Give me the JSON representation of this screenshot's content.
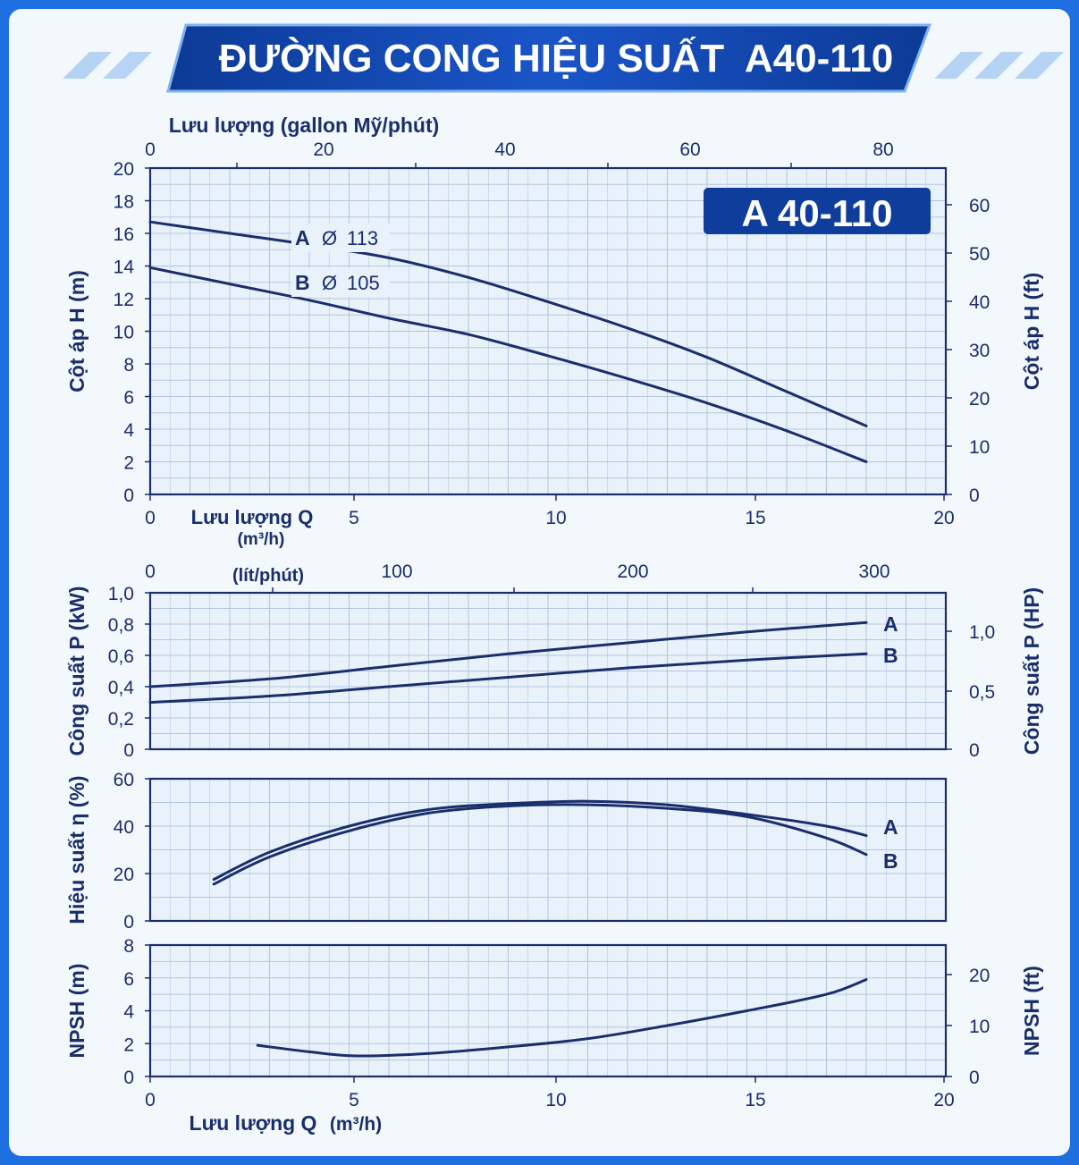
{
  "page_title": "ĐƯỜNG CONG HIỆU SUẤT  A40-110",
  "model_badge": "A 40-110",
  "colors": {
    "frame": "#1f6fe0",
    "panel": "#f3f8fd",
    "plot_bg": "#e9f2fb",
    "grid": "#b4c6dc",
    "curve": "#1a2e6c",
    "text": "#1a2e6c",
    "banner": "#0f3d9c"
  },
  "chart_data": [
    {
      "id": "head",
      "type": "line",
      "ylabel_left": "Cột áp H (m)",
      "ylabel_right": "Cột áp H (ft)",
      "top_axis_label": "Lưu lượng (gallon Mỹ/phút)",
      "top_ticks": [
        "0",
        "20",
        "40",
        "60",
        "80"
      ],
      "xlim": [
        0,
        20
      ],
      "ylim": [
        0,
        20
      ],
      "x_ticks": [
        "0",
        "5",
        "10",
        "15",
        "20"
      ],
      "x_axis_label": "Lưu lượng Q",
      "x_axis_unit": "(m³/h)",
      "y_ticks": [
        "0",
        "2",
        "4",
        "6",
        "8",
        "10",
        "12",
        "14",
        "16",
        "18",
        "20"
      ],
      "y_right_ticks": [
        "0",
        "10",
        "20",
        "30",
        "40",
        "50",
        "60"
      ],
      "series": [
        {
          "name": "A",
          "label_symbol": "Ø",
          "label_value": "113",
          "x": [
            0,
            2,
            4,
            6,
            8,
            10,
            12,
            14,
            16,
            18
          ],
          "y": [
            16.7,
            16.0,
            15.3,
            14.5,
            13.3,
            11.8,
            10.2,
            8.4,
            6.3,
            4.2
          ]
        },
        {
          "name": "B",
          "label_symbol": "Ø",
          "label_value": "105",
          "x": [
            0,
            2,
            4,
            6,
            8,
            10,
            12,
            14,
            16,
            18
          ],
          "y": [
            13.9,
            12.9,
            11.9,
            10.8,
            9.8,
            8.5,
            7.1,
            5.6,
            3.9,
            2.0
          ]
        }
      ]
    },
    {
      "id": "power",
      "type": "line",
      "ylabel_left": "Công suất P (kW)",
      "ylabel_right": "Công suất P (HP)",
      "top_axis_label": "(lít/phút)",
      "top_ticks": [
        "0",
        "100",
        "200",
        "300"
      ],
      "xlim": [
        0,
        20
      ],
      "ylim": [
        0,
        1.0
      ],
      "y_ticks": [
        "0",
        "0,2",
        "0,4",
        "0,6",
        "0,8",
        "1,0"
      ],
      "y_right_ticks": [
        "0",
        "0,5",
        "1,0"
      ],
      "series": [
        {
          "name": "A",
          "x": [
            0,
            3,
            6,
            9,
            12,
            15,
            18
          ],
          "y": [
            0.4,
            0.45,
            0.53,
            0.61,
            0.68,
            0.75,
            0.81
          ]
        },
        {
          "name": "B",
          "x": [
            0,
            3,
            6,
            9,
            12,
            15,
            18
          ],
          "y": [
            0.3,
            0.34,
            0.4,
            0.46,
            0.52,
            0.57,
            0.61
          ]
        }
      ]
    },
    {
      "id": "efficiency",
      "type": "line",
      "ylabel_left": "Hiệu suất η (%)",
      "xlim": [
        0,
        20
      ],
      "ylim": [
        0,
        60
      ],
      "y_ticks": [
        "0",
        "20",
        "40",
        "60"
      ],
      "series": [
        {
          "name": "A",
          "x": [
            1.6,
            3,
            5,
            7,
            9,
            11,
            13,
            15,
            17,
            18
          ],
          "y": [
            17.5,
            29,
            40,
            47,
            49.5,
            50.5,
            49,
            45,
            40,
            36
          ]
        },
        {
          "name": "B",
          "x": [
            1.6,
            3,
            5,
            7,
            9,
            11,
            13,
            15,
            17,
            18
          ],
          "y": [
            15.5,
            27,
            38,
            45.5,
            48.5,
            49,
            47.5,
            44,
            35,
            28
          ]
        }
      ]
    },
    {
      "id": "npsh",
      "type": "line",
      "ylabel_left": "NPSH (m)",
      "ylabel_right": "NPSH (ft)",
      "xlim": [
        0,
        20
      ],
      "ylim": [
        0,
        8
      ],
      "x_ticks": [
        "0",
        "5",
        "10",
        "15",
        "20"
      ],
      "x_axis_label": "Lưu lượng Q",
      "x_axis_unit": "(m³/h)",
      "y_ticks": [
        "0",
        "2",
        "4",
        "6",
        "8"
      ],
      "y_right_ticks": [
        "0",
        "10",
        "20"
      ],
      "series": [
        {
          "name": "",
          "x": [
            2.7,
            4,
            5.2,
            7,
            9,
            11,
            13,
            15,
            17,
            18
          ],
          "y": [
            1.9,
            1.5,
            1.25,
            1.4,
            1.8,
            2.3,
            3.1,
            4.0,
            5.0,
            5.9
          ]
        }
      ]
    }
  ]
}
